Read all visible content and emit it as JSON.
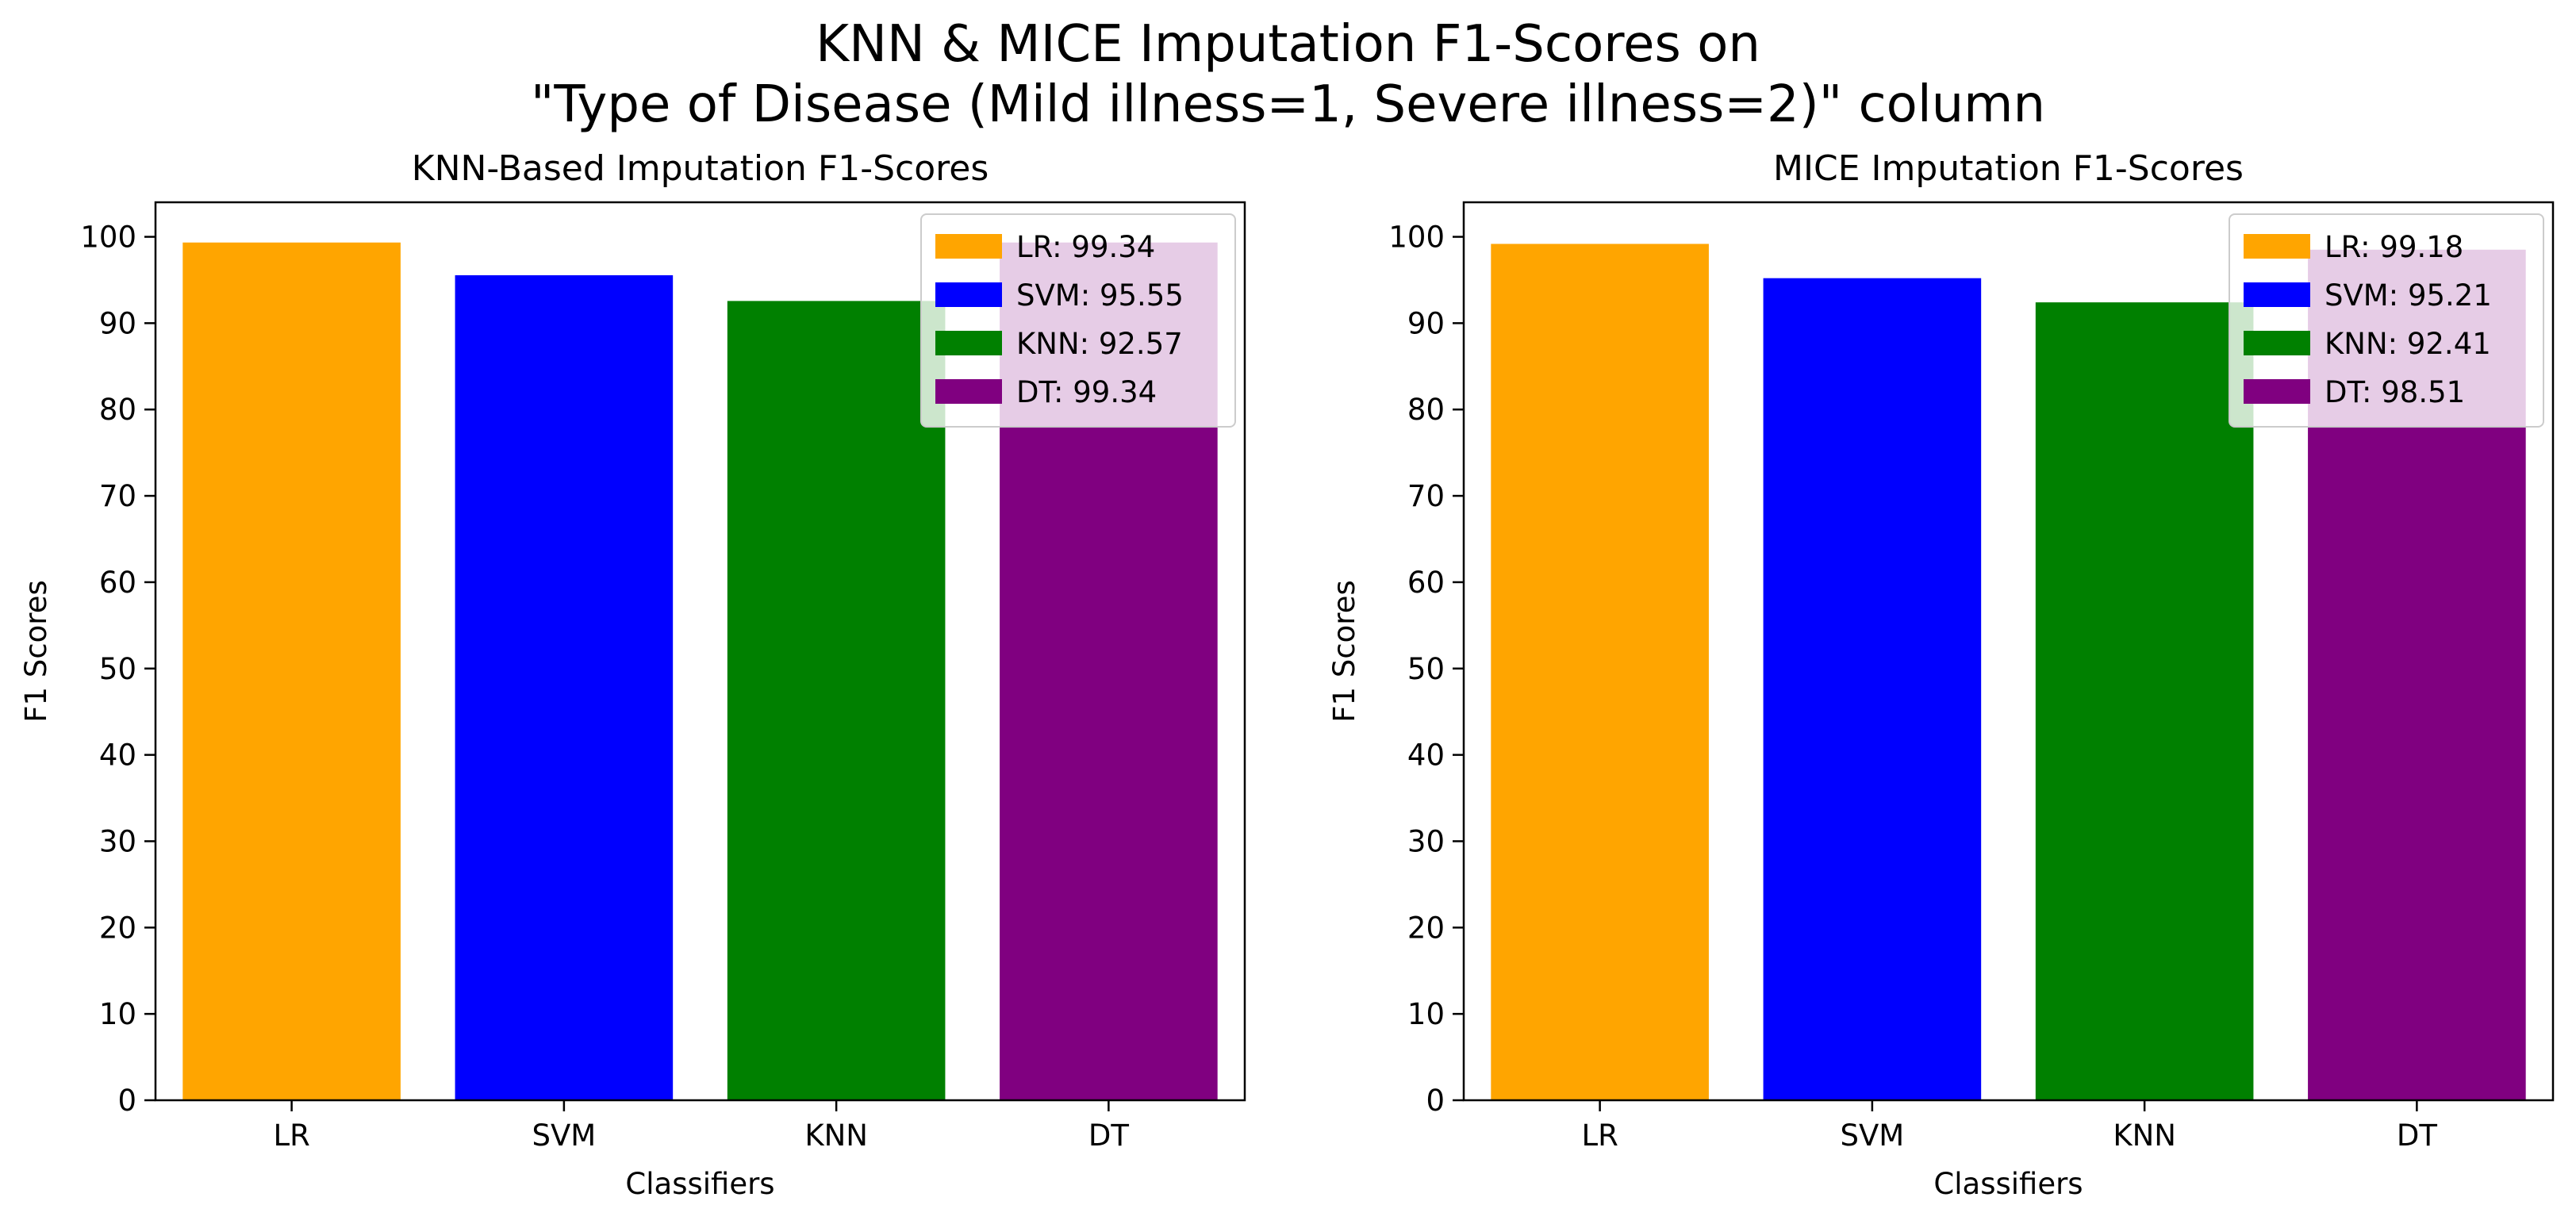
{
  "suptitle": {
    "line1": "KNN & MICE Imputation F1-Scores on",
    "line2": "\"Type of Disease (Mild illness=1, Severe illness=2)\" column"
  },
  "colors": {
    "LR": "#ffa500",
    "SVM": "#0000ff",
    "KNN": "#008000",
    "DT": "#800080"
  },
  "chart_data": [
    {
      "type": "bar",
      "title": "KNN-Based Imputation F1-Scores",
      "xlabel": "Classifiers",
      "ylabel": "F1 Scores",
      "categories": [
        "LR",
        "SVM",
        "KNN",
        "DT"
      ],
      "values": [
        99.34,
        95.55,
        92.57,
        99.34
      ],
      "legend": [
        "LR: 99.34",
        "SVM: 95.55",
        "KNN: 92.57",
        "DT: 99.34"
      ],
      "ylim": [
        0,
        104
      ],
      "yticks": [
        0,
        10,
        20,
        30,
        40,
        50,
        60,
        70,
        80,
        90,
        100
      ],
      "legend_position": "top-right",
      "grid": false
    },
    {
      "type": "bar",
      "title": "MICE Imputation F1-Scores",
      "xlabel": "Classifiers",
      "ylabel": "F1 Scores",
      "categories": [
        "LR",
        "SVM",
        "KNN",
        "DT"
      ],
      "values": [
        99.18,
        95.21,
        92.41,
        98.51
      ],
      "legend": [
        "LR: 99.18",
        "SVM: 95.21",
        "KNN: 92.41",
        "DT: 98.51"
      ],
      "ylim": [
        0,
        104
      ],
      "yticks": [
        0,
        10,
        20,
        30,
        40,
        50,
        60,
        70,
        80,
        90,
        100
      ],
      "legend_position": "top-right",
      "grid": false
    }
  ]
}
